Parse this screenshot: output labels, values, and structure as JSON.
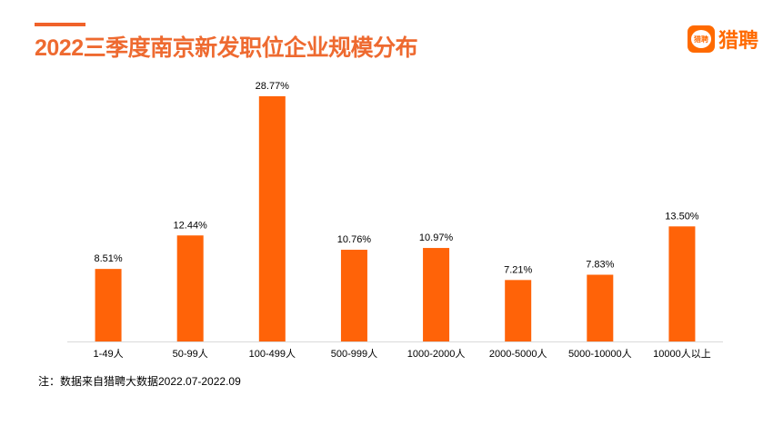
{
  "header": {
    "title": "2022三季度南京新发职位企业规模分布",
    "logo_icon_text": "猎聘",
    "logo_text": "猎聘"
  },
  "chart_data": {
    "type": "bar",
    "title": "2022三季度南京新发职位企业规模分布",
    "categories": [
      "1-49人",
      "50-99人",
      "100-499人",
      "500-999人",
      "1000-2000人",
      "2000-5000人",
      "5000-10000人",
      "10000人以上"
    ],
    "values": [
      8.51,
      12.44,
      28.77,
      10.76,
      10.97,
      7.21,
      7.83,
      13.5
    ],
    "data_labels": [
      "8.51%",
      "12.44%",
      "28.77%",
      "10.76%",
      "10.97%",
      "7.21%",
      "7.83%",
      "13.50%"
    ],
    "ylim": [
      0,
      28.77
    ],
    "grid": false,
    "bar_color": "#ff6308"
  },
  "footer": {
    "note": "注：数据来自猎聘大数据2022.07-2022.09"
  }
}
